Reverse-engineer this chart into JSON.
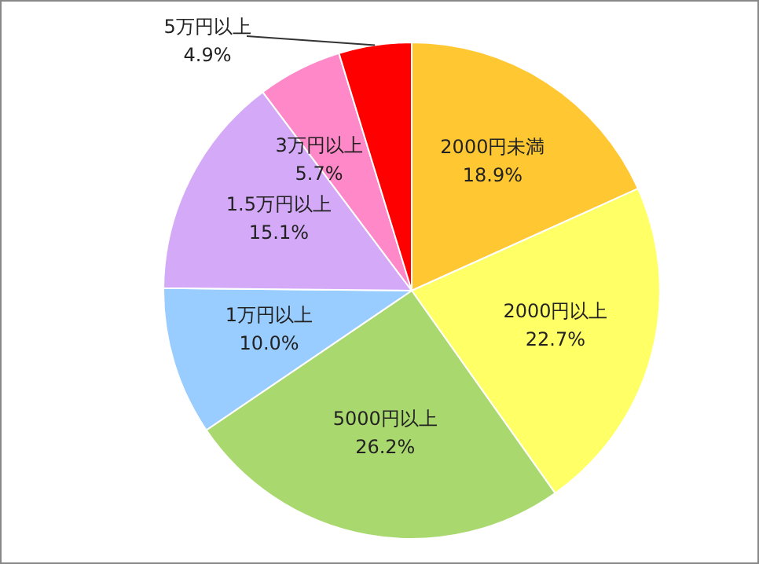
{
  "chart_data": {
    "type": "pie",
    "categories": [
      "2000円未満",
      "2000円以上",
      "5000円以上",
      "1万円以上",
      "1.5万円以上",
      "3万円以上",
      "5万円以上"
    ],
    "values": [
      18.9,
      22.7,
      26.2,
      10.0,
      15.1,
      5.7,
      4.9
    ],
    "value_labels": [
      "18.9%",
      "22.7%",
      "26.2%",
      "10.0%",
      "15.1%",
      "5.7%",
      "4.9%"
    ],
    "colors": [
      "#ffc832",
      "#ffff66",
      "#a9d86e",
      "#99ccff",
      "#d4aaf8",
      "#ff88c8",
      "#ff0000"
    ],
    "legend": false
  }
}
